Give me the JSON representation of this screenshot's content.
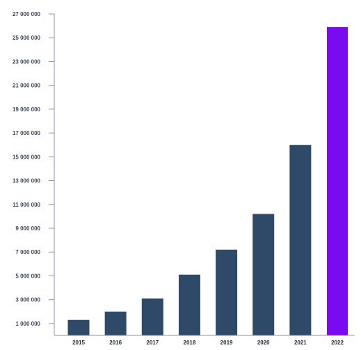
{
  "chart_data": {
    "type": "bar",
    "categories": [
      "2015",
      "2016",
      "2017",
      "2018",
      "2019",
      "2020",
      "2021",
      "2022"
    ],
    "values": [
      1300000,
      2000000,
      3100000,
      5100000,
      7200000,
      10200000,
      16000000,
      25900000
    ],
    "bar_colors": [
      "#2e4a68",
      "#2e4a68",
      "#2e4a68",
      "#2e4a68",
      "#2e4a68",
      "#2e4a68",
      "#2e4a68",
      "#7a0af0"
    ],
    "ylim": [
      0,
      27000000
    ],
    "yticks": [
      1000000,
      3000000,
      5000000,
      7000000,
      9000000,
      11000000,
      13000000,
      15000000,
      17000000,
      19000000,
      21000000,
      23000000,
      25000000,
      27000000
    ],
    "ytick_labels": [
      "1 000 000",
      "3 000 000",
      "5 000 000",
      "7 000 000",
      "9 000 000",
      "11 000 000",
      "13 000 000",
      "15 000 000",
      "17 000 000",
      "19 000 000",
      "21 000 000",
      "23 000 000",
      "25 000 000",
      "27 000 000"
    ],
    "title": "",
    "xlabel": "",
    "ylabel": "",
    "grid": false,
    "legend": "none",
    "axis_color": "#8a93a6"
  }
}
